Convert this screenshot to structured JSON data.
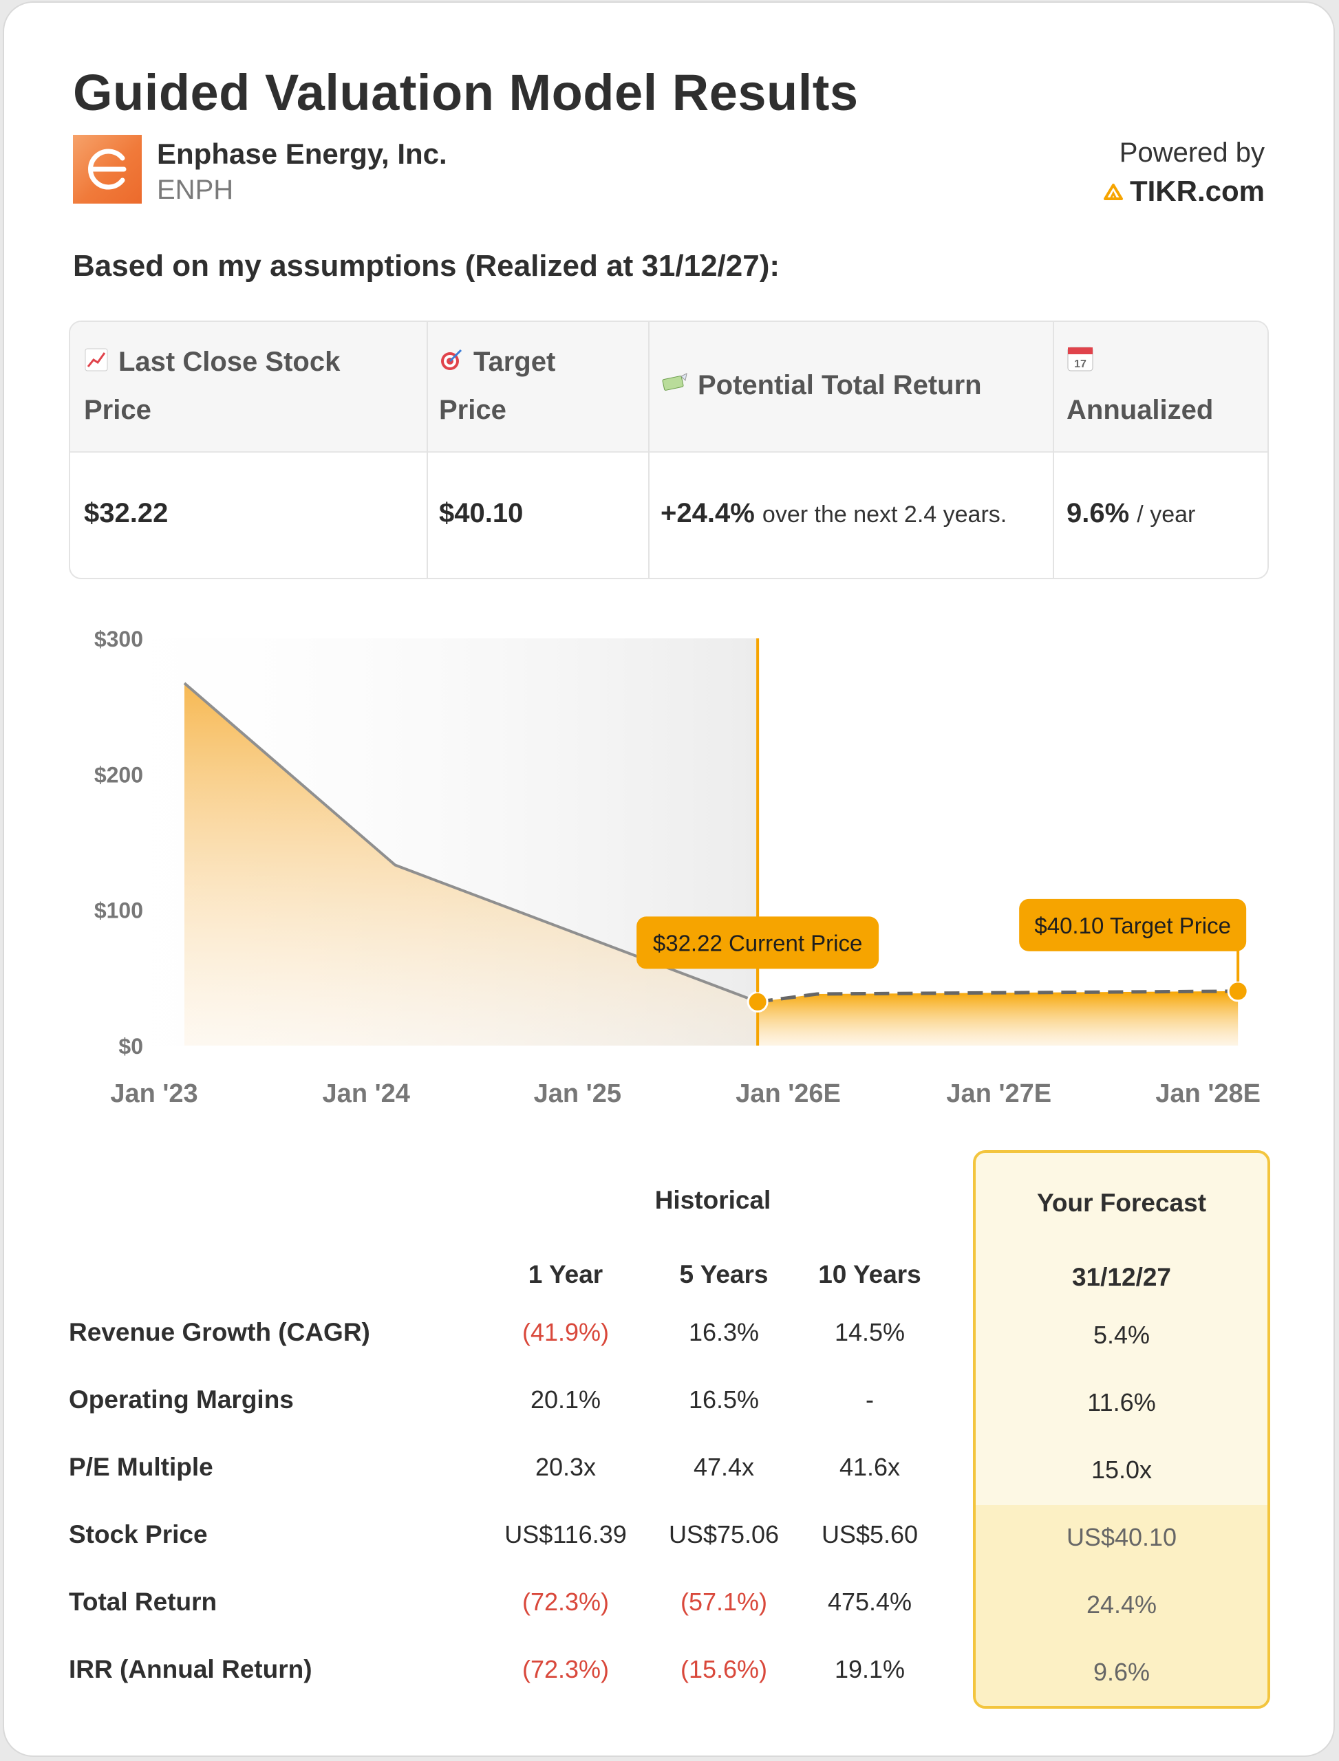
{
  "header": {
    "title": "Guided Valuation Model Results",
    "company": "Enphase Energy, Inc.",
    "ticker": "ENPH",
    "powered_by": "Powered by",
    "brand": "TIKR.com"
  },
  "subtitle": "Based on my assumptions (Realized at 31/12/27):",
  "summary": {
    "headers": {
      "last_close_line1": "Last Close Stock",
      "last_close_line2": "Price",
      "target_line1": "Target",
      "target_line2": "Price",
      "potential": "Potential Total Return",
      "annualized": "Annualized"
    },
    "values": {
      "last_close": "$32.22",
      "target": "$40.10",
      "potential_pct": "+24.4%",
      "potential_text": "over the next 2.4 years.",
      "annualized_pct": "9.6%",
      "annualized_text": "/ year"
    },
    "icons": [
      "chart-increasing-icon",
      "target-icon",
      "money-with-wings-icon",
      "calendar-icon"
    ],
    "calendar_day": "17"
  },
  "chart_data": {
    "type": "area",
    "x_ticks": [
      "Jan '23",
      "Jan '24",
      "Jan '25",
      "Jan '26E",
      "Jan '27E",
      "Jan '28E"
    ],
    "y_ticks": [
      "$300",
      "$200",
      "$100",
      "$0"
    ],
    "ylim": [
      0,
      300
    ],
    "series": [
      {
        "name": "Historical",
        "points": [
          {
            "x": "2023-01-01",
            "y": 267
          },
          {
            "x": "2024-01-01",
            "y": 133
          },
          {
            "x": "2025-09-20",
            "y": 32.22
          }
        ]
      },
      {
        "name": "Forecast",
        "points": [
          {
            "x": "2025-09-20",
            "y": 32.22
          },
          {
            "x": "2026-01-01",
            "y": 38
          },
          {
            "x": "2027-12-31",
            "y": 40.1
          }
        ]
      }
    ],
    "annotations": {
      "current": "$32.22 Current Price",
      "target": "$40.10 Target Price"
    },
    "colors": {
      "accent": "#f6a400",
      "line": "#8f8f8f",
      "dashed": "#666666"
    }
  },
  "performance": {
    "historical_label": "Historical",
    "forecast_label": "Your Forecast",
    "columns": [
      "1 Year",
      "5 Years",
      "10 Years"
    ],
    "forecast_column": "31/12/27",
    "rows": [
      {
        "label": "Revenue Growth (CAGR)",
        "values": [
          "(41.9%)",
          "16.3%",
          "14.5%"
        ],
        "neg": [
          true,
          false,
          false
        ],
        "forecast": "5.4%"
      },
      {
        "label": "Operating Margins",
        "values": [
          "20.1%",
          "16.5%",
          "-"
        ],
        "neg": [
          false,
          false,
          false
        ],
        "forecast": "11.6%"
      },
      {
        "label": "P/E Multiple",
        "values": [
          "20.3x",
          "47.4x",
          "41.6x"
        ],
        "neg": [
          false,
          false,
          false
        ],
        "forecast": "15.0x"
      },
      {
        "label": "Stock Price",
        "values": [
          "US$116.39",
          "US$75.06",
          "US$5.60"
        ],
        "neg": [
          false,
          false,
          false
        ],
        "forecast": "US$40.10"
      },
      {
        "label": "Total Return",
        "values": [
          "(72.3%)",
          "(57.1%)",
          "475.4%"
        ],
        "neg": [
          true,
          true,
          false
        ],
        "forecast": "24.4%"
      },
      {
        "label": "IRR (Annual Return)",
        "values": [
          "(72.3%)",
          "(15.6%)",
          "19.1%"
        ],
        "neg": [
          true,
          true,
          false
        ],
        "forecast": "9.6%"
      }
    ]
  }
}
